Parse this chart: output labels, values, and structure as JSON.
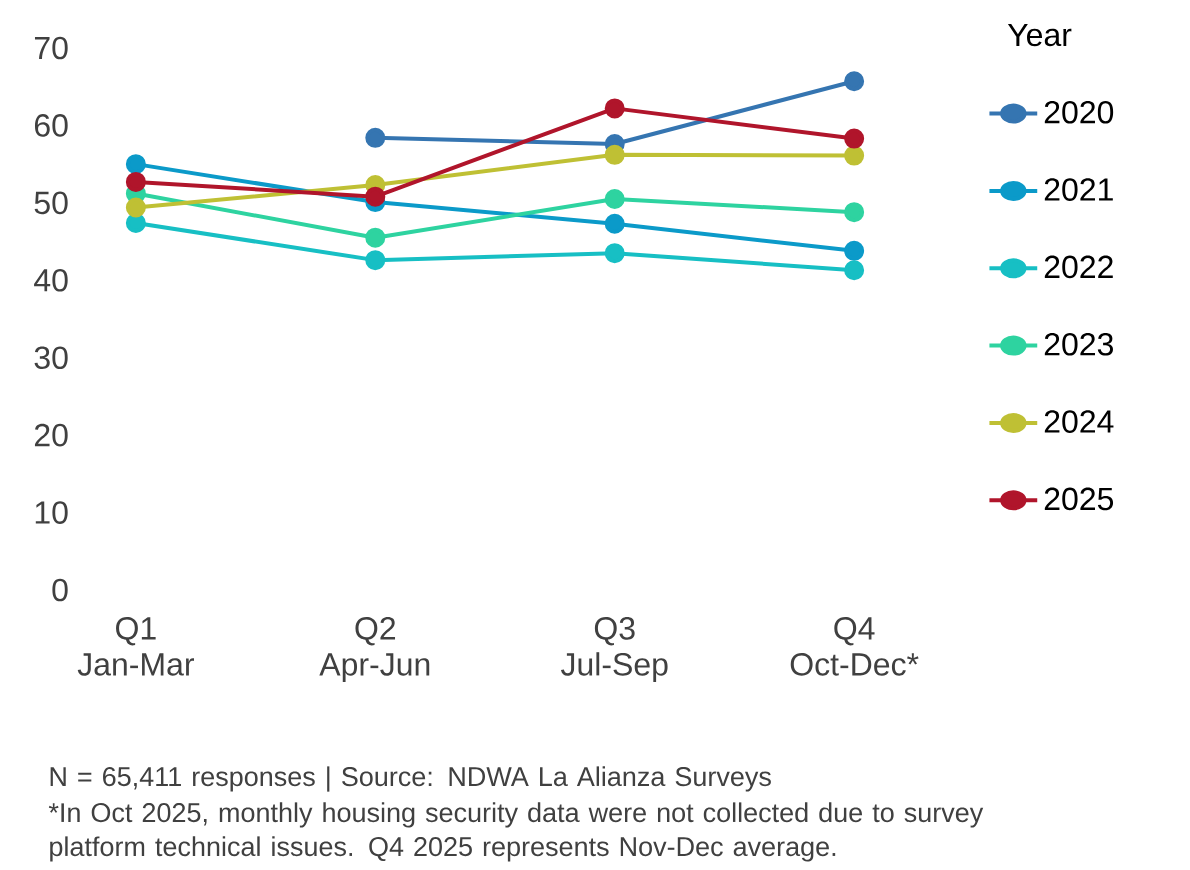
{
  "chart_data": {
    "type": "line",
    "legend_title": "Year",
    "categories": [
      "Q1 Jan-Mar",
      "Q2 Apr-Jun",
      "Q3 Jul-Sep",
      "Q4 Oct-Dec*"
    ],
    "series": [
      {
        "name": "2020",
        "color": "#3575b1",
        "values": [
          null,
          58.4,
          57.6,
          65.7
        ]
      },
      {
        "name": "2021",
        "color": "#0b9ac9",
        "values": [
          55.0,
          50.1,
          47.3,
          43.8
        ]
      },
      {
        "name": "2022",
        "color": "#17bfc4",
        "values": [
          47.4,
          42.6,
          43.5,
          41.3
        ]
      },
      {
        "name": "2023",
        "color": "#2ed3a0",
        "values": [
          51.2,
          45.5,
          50.5,
          48.8
        ]
      },
      {
        "name": "2024",
        "color": "#bfc034",
        "values": [
          49.4,
          52.3,
          56.2,
          56.1
        ]
      },
      {
        "name": "2025",
        "color": "#b0152b",
        "values": [
          52.7,
          50.8,
          62.2,
          58.3
        ]
      }
    ],
    "ylim": [
      0,
      70
    ],
    "yticks": [
      0,
      10,
      20,
      30,
      40,
      50,
      60,
      70
    ],
    "grid": false,
    "legend": "right",
    "marker": "circle",
    "line_style": "solid",
    "annotations": [
      "N = 65,411 responses | Source: NDWA La Alianza Surveys",
      "*In Oct 2025, monthly housing security data were not collected due to survey platform technical issues. Q4 2025 represents Nov-Dec average."
    ]
  }
}
